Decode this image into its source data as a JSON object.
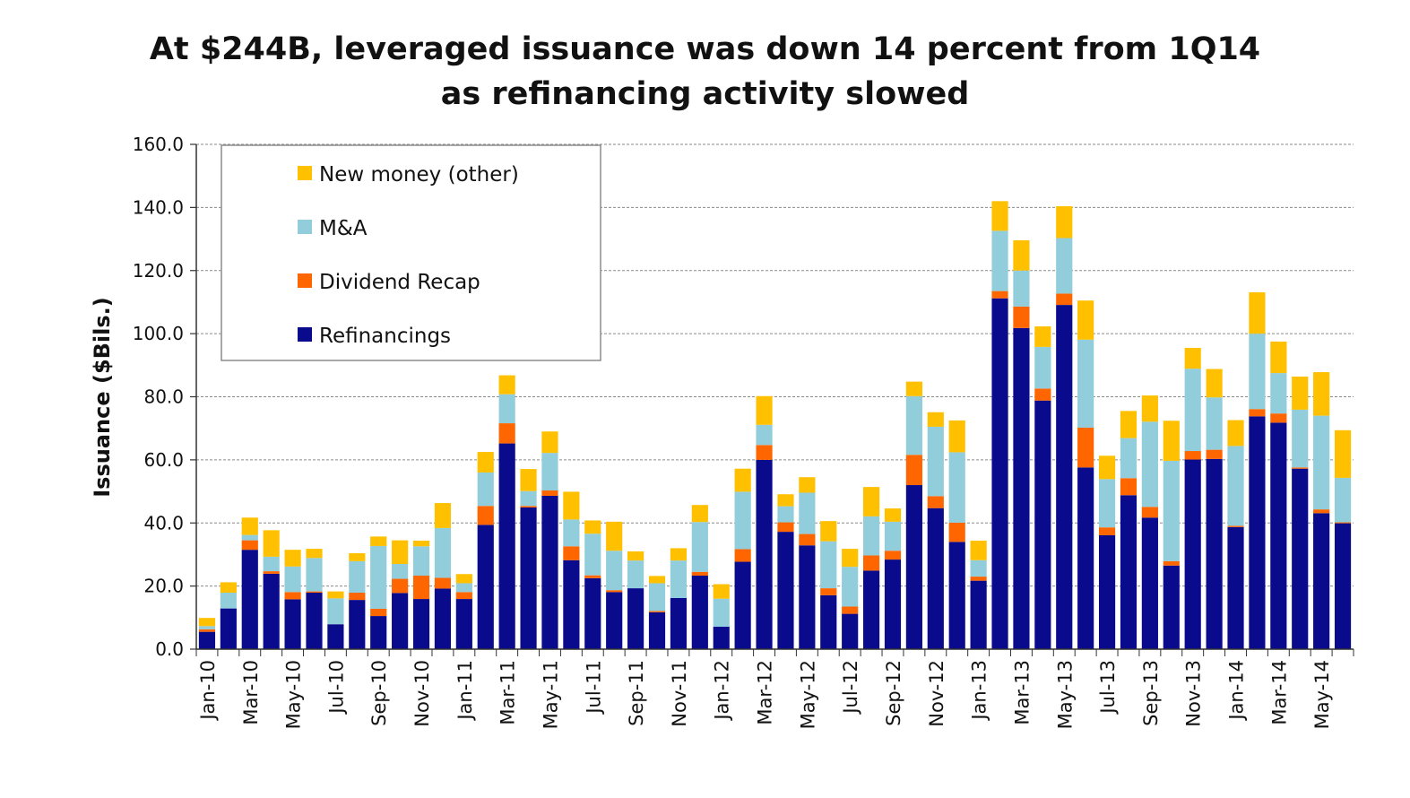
{
  "chart_data": {
    "type": "bar",
    "stacked": true,
    "title_lines": [
      "At $244B, leveraged issuance was down 14 percent from 1Q14",
      "as refinancing activity slowed"
    ],
    "ylabel": "Issuance ($Bils.)",
    "xlabel": "",
    "ylim": [
      0,
      160
    ],
    "yticks": [
      "0.0",
      "20.0",
      "40.0",
      "60.0",
      "80.0",
      "100.0",
      "120.0",
      "140.0",
      "160.0"
    ],
    "grid": "horizontal dashed",
    "legend_placement": "top-left",
    "categories": [
      "Jan-10",
      "Feb-10",
      "Mar-10",
      "Apr-10",
      "May-10",
      "Jun-10",
      "Jul-10",
      "Aug-10",
      "Sep-10",
      "Oct-10",
      "Nov-10",
      "Dec-10",
      "Jan-11",
      "Feb-11",
      "Mar-11",
      "Apr-11",
      "May-11",
      "Jun-11",
      "Jul-11",
      "Aug-11",
      "Sep-11",
      "Oct-11",
      "Nov-11",
      "Dec-11",
      "Jan-12",
      "Feb-12",
      "Mar-12",
      "Apr-12",
      "May-12",
      "Jun-12",
      "Jul-12",
      "Aug-12",
      "Sep-12",
      "Oct-12",
      "Nov-12",
      "Dec-12",
      "Jan-13",
      "Feb-13",
      "Mar-13",
      "Apr-13",
      "May-13",
      "Jun-13",
      "Jul-13",
      "Aug-13",
      "Sep-13",
      "Oct-13",
      "Nov-13",
      "Dec-13",
      "Jan-14",
      "Feb-14",
      "Mar-14",
      "Apr-14",
      "May-14",
      "Jun-14"
    ],
    "x_tick_labels": [
      "Jan-10",
      "Mar-10",
      "May-10",
      "Jul-10",
      "Sep-10",
      "Nov-10",
      "Jan-11",
      "Mar-11",
      "May-11",
      "Jul-11",
      "Sep-11",
      "Nov-11",
      "Jan-12",
      "Mar-12",
      "May-12",
      "Jul-12",
      "Sep-12",
      "Nov-12",
      "Jan-13",
      "Mar-13",
      "May-13",
      "Jul-13",
      "Sep-13",
      "Nov-13",
      "Jan-14",
      "Mar-14",
      "May-14"
    ],
    "series": [
      {
        "name": "Refinancings",
        "color": "#0a0a8c",
        "values": [
          5.5,
          12.9,
          31.5,
          23.9,
          15.8,
          17.9,
          7.9,
          15.6,
          10.5,
          17.8,
          15.9,
          19.2,
          15.9,
          39.4,
          65.2,
          44.9,
          48.6,
          28.2,
          22.5,
          18.1,
          19.3,
          11.7,
          16.2,
          23.3,
          7.1,
          27.7,
          60.0,
          37.2,
          32.9,
          17.1,
          11.2,
          24.9,
          28.4,
          52.0,
          44.7,
          34.0,
          21.7,
          111.2,
          101.8,
          78.8,
          109.1,
          57.6,
          36.1,
          48.8,
          41.7,
          26.5,
          60.1,
          60.3,
          38.7,
          73.8,
          71.8,
          57.2,
          43.1,
          39.9
        ]
      },
      {
        "name": "Dividend Recap",
        "color": "#ff6600",
        "values": [
          0.8,
          0.0,
          3.0,
          0.8,
          2.3,
          0.4,
          0.0,
          2.3,
          2.3,
          4.5,
          7.4,
          3.4,
          2.2,
          6.0,
          6.4,
          0.5,
          1.7,
          4.4,
          0.9,
          0.6,
          0.0,
          0.4,
          0.0,
          1.2,
          0.0,
          4.0,
          4.7,
          3.0,
          3.6,
          2.2,
          2.3,
          4.8,
          2.8,
          9.6,
          3.8,
          6.1,
          1.3,
          2.3,
          6.8,
          3.8,
          3.6,
          12.6,
          2.5,
          5.4,
          3.4,
          1.4,
          2.7,
          2.9,
          0.4,
          2.3,
          2.9,
          0.4,
          1.2,
          0.3
        ]
      },
      {
        "name": "M&A",
        "color": "#92cddc",
        "values": [
          1.0,
          5.0,
          1.7,
          4.6,
          8.1,
          10.6,
          8.2,
          10.0,
          19.9,
          4.7,
          9.3,
          15.8,
          2.8,
          10.6,
          9.2,
          4.7,
          11.9,
          8.5,
          13.2,
          12.5,
          8.8,
          8.8,
          11.9,
          15.8,
          8.9,
          18.2,
          6.4,
          5.1,
          13.1,
          14.9,
          12.6,
          12.4,
          9.2,
          18.6,
          22.0,
          22.3,
          5.2,
          19.1,
          11.4,
          13.2,
          17.6,
          27.9,
          15.3,
          12.7,
          27.0,
          31.8,
          26.1,
          16.6,
          25.3,
          23.9,
          12.8,
          18.3,
          29.7,
          14.1
        ]
      },
      {
        "name": "New money (other)",
        "color": "#ffc000",
        "values": [
          2.6,
          3.3,
          5.5,
          8.4,
          5.3,
          2.9,
          2.2,
          2.5,
          3.0,
          7.5,
          1.8,
          7.9,
          2.9,
          6.5,
          6.0,
          7.0,
          6.8,
          8.8,
          4.2,
          9.2,
          2.9,
          2.3,
          3.9,
          5.4,
          4.6,
          7.3,
          9.1,
          3.8,
          4.9,
          6.4,
          5.7,
          9.3,
          4.2,
          4.6,
          4.6,
          10.1,
          6.2,
          9.4,
          9.6,
          6.5,
          10.1,
          12.4,
          7.4,
          8.6,
          8.3,
          12.7,
          6.6,
          9.0,
          8.2,
          13.1,
          10.0,
          10.5,
          13.8,
          15.1
        ]
      }
    ]
  }
}
